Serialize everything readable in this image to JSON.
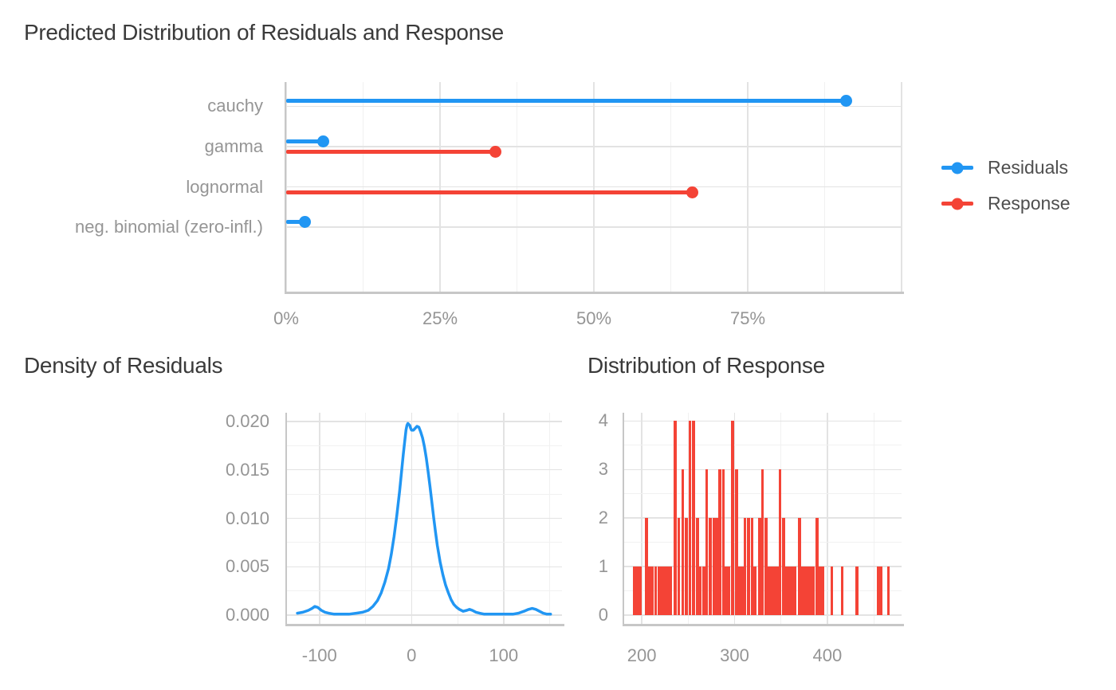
{
  "page_title": "Predicted Distribution of Residuals and Response",
  "colors": {
    "residuals": "#2196F3",
    "response": "#F44336",
    "grid_major": "#e3e3e3",
    "grid_minor": "#f1f1f1",
    "axis_line": "#c7c7c7",
    "tick_text": "#959595",
    "title_text": "#3a3a3a",
    "legend_text": "#4f4f4f"
  },
  "chart_data": [
    {
      "type": "lollipop",
      "title": "Predicted Distribution of Residuals and Response",
      "categories": [
        "cauchy",
        "gamma",
        "lognormal",
        "neg. binomial (zero-infl.)"
      ],
      "series": [
        {
          "name": "Residuals",
          "color": "residuals",
          "values": [
            91,
            6,
            null,
            3
          ]
        },
        {
          "name": "Response",
          "color": "response",
          "values": [
            null,
            34,
            66,
            null
          ]
        }
      ],
      "unit": "percent",
      "xlim": [
        0,
        100
      ],
      "x_major": [
        0,
        25,
        50,
        75,
        100
      ],
      "x_minor": [
        12.5,
        37.5,
        62.5,
        87.5
      ],
      "x_tick_labels": [
        {
          "value": 0,
          "label": "0%"
        },
        {
          "value": 25,
          "label": "25%"
        },
        {
          "value": 50,
          "label": "50%"
        },
        {
          "value": 75,
          "label": "75%"
        }
      ],
      "legend": {
        "position": "right",
        "items": [
          {
            "label": "Residuals",
            "color": "residuals"
          },
          {
            "label": "Response",
            "color": "response"
          }
        ]
      }
    },
    {
      "type": "line",
      "title": "Density of Residuals",
      "series_color": "residuals",
      "xlim": [
        -135.3,
        163.4
      ],
      "ylim": [
        -0.0009,
        0.0209
      ],
      "x_major": [
        -100,
        0,
        100
      ],
      "x_minor": [
        -50,
        50,
        150
      ],
      "x_tick_labels": [
        {
          "value": -100,
          "label": "-100"
        },
        {
          "value": 0,
          "label": "0"
        },
        {
          "value": 100,
          "label": "100"
        }
      ],
      "y_major": [
        0,
        0.005,
        0.01,
        0.015,
        0.02
      ],
      "y_minor": [
        0.0025,
        0.0075,
        0.0125,
        0.0175
      ],
      "y_tick_labels": [
        {
          "value": 0,
          "label": "0.000"
        },
        {
          "value": 0.005,
          "label": "0.005"
        },
        {
          "value": 0.01,
          "label": "0.010"
        },
        {
          "value": 0.015,
          "label": "0.015"
        },
        {
          "value": 0.02,
          "label": "0.020"
        }
      ],
      "points": [
        [
          -124,
          0.0002
        ],
        [
          -118,
          0.0003
        ],
        [
          -112,
          0.0005
        ],
        [
          -108,
          0.0007
        ],
        [
          -105,
          0.0009
        ],
        [
          -102,
          0.0008
        ],
        [
          -98,
          0.0005
        ],
        [
          -94,
          0.0003
        ],
        [
          -90,
          0.0002
        ],
        [
          -84,
          0.0001
        ],
        [
          -76,
          0.0001
        ],
        [
          -68,
          0.0001
        ],
        [
          -60,
          0.0002
        ],
        [
          -53,
          0.0003
        ],
        [
          -47,
          0.0005
        ],
        [
          -42,
          0.0009
        ],
        [
          -37,
          0.0015
        ],
        [
          -33,
          0.0023
        ],
        [
          -29,
          0.0034
        ],
        [
          -25,
          0.0048
        ],
        [
          -22,
          0.0063
        ],
        [
          -19,
          0.0081
        ],
        [
          -16,
          0.0103
        ],
        [
          -13,
          0.0128
        ],
        [
          -11,
          0.0147
        ],
        [
          -9,
          0.0166
        ],
        [
          -7,
          0.0183
        ],
        [
          -6,
          0.0191
        ],
        [
          -5,
          0.0196
        ],
        [
          -4,
          0.0198
        ],
        [
          -2,
          0.0196
        ],
        [
          -1,
          0.0193
        ],
        [
          0,
          0.0191
        ],
        [
          2,
          0.0191
        ],
        [
          4,
          0.0193
        ],
        [
          6,
          0.0195
        ],
        [
          8,
          0.0194
        ],
        [
          10,
          0.0189
        ],
        [
          12,
          0.0183
        ],
        [
          14,
          0.0174
        ],
        [
          16,
          0.0162
        ],
        [
          18,
          0.0148
        ],
        [
          20,
          0.0133
        ],
        [
          22,
          0.0117
        ],
        [
          24,
          0.0101
        ],
        [
          26,
          0.0086
        ],
        [
          28,
          0.0072
        ],
        [
          31,
          0.0055
        ],
        [
          34,
          0.0042
        ],
        [
          37,
          0.0031
        ],
        [
          40,
          0.0023
        ],
        [
          43,
          0.0016
        ],
        [
          46,
          0.0011
        ],
        [
          49,
          0.0008
        ],
        [
          52,
          0.0006
        ],
        [
          56,
          0.0004
        ],
        [
          60,
          0.0005
        ],
        [
          63,
          0.0006
        ],
        [
          66,
          0.0005
        ],
        [
          70,
          0.0003
        ],
        [
          74,
          0.0002
        ],
        [
          79,
          0.0001
        ],
        [
          86,
          0.0001
        ],
        [
          94,
          0.0001
        ],
        [
          102,
          0.0001
        ],
        [
          110,
          0.0001
        ],
        [
          116,
          0.0002
        ],
        [
          122,
          0.0004
        ],
        [
          127,
          0.0006
        ],
        [
          131,
          0.0007
        ],
        [
          135,
          0.0006
        ],
        [
          139,
          0.0004
        ],
        [
          143,
          0.0002
        ],
        [
          147,
          0.0001
        ],
        [
          151,
          0.0001
        ]
      ]
    },
    {
      "type": "bar",
      "title": "Distribution of Response",
      "series_color": "response",
      "xlim": [
        181,
        480
      ],
      "ylim": [
        -0.18,
        4.17
      ],
      "x_major": [
        200,
        300,
        400
      ],
      "x_minor": [
        250,
        350,
        450
      ],
      "x_tick_labels": [
        {
          "value": 200,
          "label": "200"
        },
        {
          "value": 300,
          "label": "300"
        },
        {
          "value": 400,
          "label": "400"
        }
      ],
      "y_major": [
        0,
        1,
        2,
        3,
        4
      ],
      "y_minor": [
        0.5,
        1.5,
        2.5,
        3.5
      ],
      "y_tick_labels": [
        {
          "value": 0,
          "label": "0"
        },
        {
          "value": 1,
          "label": "1"
        },
        {
          "value": 2,
          "label": "2"
        },
        {
          "value": 3,
          "label": "3"
        },
        {
          "value": 4,
          "label": "4"
        }
      ],
      "bar_width_units": 3.1,
      "bars": [
        [
          192,
          1
        ],
        [
          195,
          1
        ],
        [
          198,
          1
        ],
        [
          205,
          2
        ],
        [
          208,
          1
        ],
        [
          211,
          1
        ],
        [
          215,
          1
        ],
        [
          219,
          1
        ],
        [
          222,
          1
        ],
        [
          225,
          1
        ],
        [
          228,
          1
        ],
        [
          231,
          1
        ],
        [
          236,
          4
        ],
        [
          240,
          2
        ],
        [
          244,
          3
        ],
        [
          248,
          2
        ],
        [
          252,
          4
        ],
        [
          256,
          4
        ],
        [
          260,
          2
        ],
        [
          263,
          1
        ],
        [
          267,
          1
        ],
        [
          270,
          3
        ],
        [
          274,
          2
        ],
        [
          278,
          2
        ],
        [
          281,
          2
        ],
        [
          284,
          3
        ],
        [
          288,
          3
        ],
        [
          291,
          1
        ],
        [
          294,
          1
        ],
        [
          298,
          4
        ],
        [
          302,
          3
        ],
        [
          305,
          1
        ],
        [
          308,
          1
        ],
        [
          311,
          2
        ],
        [
          315,
          2
        ],
        [
          319,
          2
        ],
        [
          322,
          1
        ],
        [
          327,
          2
        ],
        [
          330,
          3
        ],
        [
          334,
          2
        ],
        [
          337,
          1
        ],
        [
          340,
          1
        ],
        [
          343,
          1
        ],
        [
          346,
          1
        ],
        [
          349,
          3
        ],
        [
          353,
          2
        ],
        [
          356,
          1
        ],
        [
          359,
          1
        ],
        [
          362,
          1
        ],
        [
          365,
          1
        ],
        [
          370,
          2
        ],
        [
          373,
          1
        ],
        [
          376,
          1
        ],
        [
          379,
          1
        ],
        [
          382,
          1
        ],
        [
          385,
          1
        ],
        [
          389,
          2
        ],
        [
          392,
          1
        ],
        [
          395,
          1
        ],
        [
          405,
          1
        ],
        [
          416,
          1
        ],
        [
          432,
          1
        ],
        [
          455,
          1
        ],
        [
          458,
          1
        ],
        [
          466,
          1
        ]
      ]
    }
  ]
}
